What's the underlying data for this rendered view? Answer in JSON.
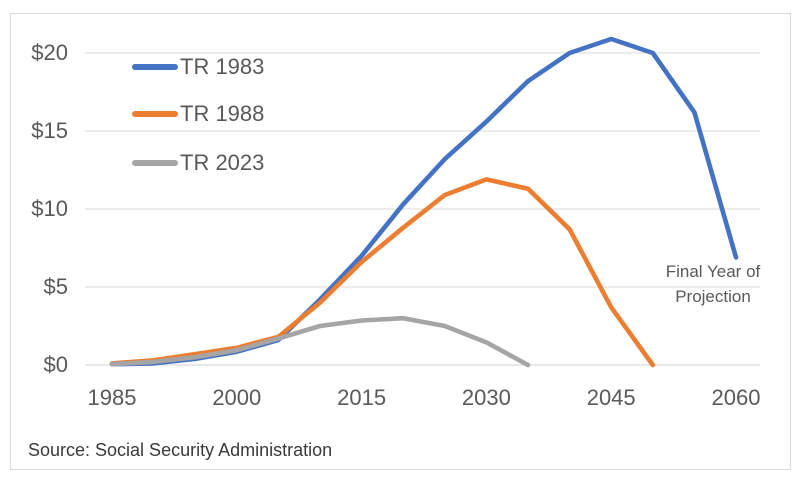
{
  "chart_data": {
    "type": "line",
    "x": [
      1985,
      1990,
      1995,
      2000,
      2005,
      2010,
      2015,
      2020,
      2025,
      2030,
      2035,
      2040,
      2045,
      2050,
      2055,
      2060
    ],
    "series": [
      {
        "name": "TR 1983",
        "color": "#4472C4",
        "values": [
          0.05,
          0.1,
          0.4,
          0.85,
          1.6,
          4.2,
          7.0,
          10.3,
          13.2,
          15.6,
          18.2,
          20.0,
          20.9,
          20.0,
          16.2,
          6.9
        ],
        "final_year": 2060
      },
      {
        "name": "TR 1988",
        "color": "#ED7D31",
        "values": [
          0.1,
          0.3,
          0.7,
          1.1,
          1.8,
          4.0,
          6.6,
          8.8,
          10.9,
          11.9,
          11.3,
          8.7,
          3.7,
          0.0
        ],
        "final_year": 2050
      },
      {
        "name": "TR 2023",
        "color": "#A5A5A5",
        "values": [
          0.05,
          0.2,
          0.5,
          0.95,
          1.7,
          2.5,
          2.85,
          3.0,
          2.5,
          1.45,
          0.0
        ],
        "final_year": 2035
      }
    ],
    "x_tick_values": [
      1985,
      2000,
      2015,
      2030,
      2045,
      2060
    ],
    "x_tick_labels": [
      "1985",
      "2000",
      "2015",
      "2030",
      "2045",
      "2060"
    ],
    "y_tick_values": [
      0,
      5,
      10,
      15,
      20
    ],
    "y_tick_labels": [
      "$0",
      "$5",
      "$10",
      "$15",
      "$20"
    ],
    "xlim": [
      1985,
      2060
    ],
    "ylim": [
      0,
      21.5
    ],
    "grid": "horizontal",
    "legend_position": "inside-top-left",
    "gridline_color": "#D9D9D9",
    "axis_line_color": "#D3D3D3"
  },
  "annotation": {
    "line1": "Final Year of",
    "line2": "Projection"
  },
  "source_note": "Source: Social Security Administration",
  "frame_border_color": "#D9D9D9"
}
